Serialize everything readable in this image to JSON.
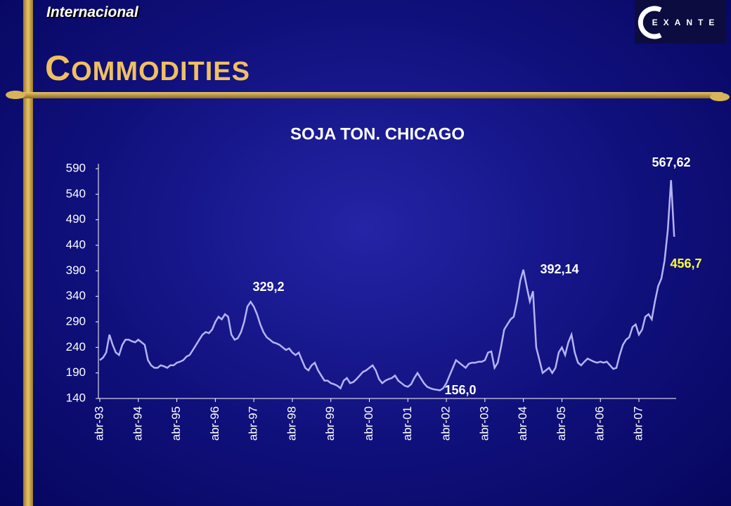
{
  "header": {
    "section": "Internacional",
    "title": "COMMODITIES",
    "logo": "EXANTE"
  },
  "chart_data": {
    "type": "line",
    "title": "SOJA TON. CHICAGO",
    "categories": [
      "abr-93",
      null,
      null,
      null,
      null,
      null,
      null,
      null,
      null,
      null,
      null,
      null,
      "abr-94",
      null,
      null,
      null,
      null,
      null,
      null,
      null,
      null,
      null,
      null,
      null,
      "abr-95",
      null,
      null,
      null,
      null,
      null,
      null,
      null,
      null,
      null,
      null,
      null,
      "abr-96",
      null,
      null,
      null,
      null,
      null,
      null,
      null,
      null,
      null,
      null,
      null,
      "abr-97",
      null,
      null,
      null,
      null,
      null,
      null,
      null,
      null,
      null,
      null,
      null,
      "abr-98",
      null,
      null,
      null,
      null,
      null,
      null,
      null,
      null,
      null,
      null,
      null,
      "abr-99",
      null,
      null,
      null,
      null,
      null,
      null,
      null,
      null,
      null,
      null,
      null,
      "abr-00",
      null,
      null,
      null,
      null,
      null,
      null,
      null,
      null,
      null,
      null,
      null,
      "abr-01",
      null,
      null,
      null,
      null,
      null,
      null,
      null,
      null,
      null,
      null,
      null,
      "abr-02",
      null,
      null,
      null,
      null,
      null,
      null,
      null,
      null,
      null,
      null,
      null,
      "abr-03",
      null,
      null,
      null,
      null,
      null,
      null,
      null,
      null,
      null,
      null,
      null,
      "abr-04",
      null,
      null,
      null,
      null,
      null,
      null,
      null,
      null,
      null,
      null,
      null,
      "abr-05",
      null,
      null,
      null,
      null,
      null,
      null,
      null,
      null,
      null,
      null,
      null,
      "abr-06",
      null,
      null,
      null,
      null,
      null,
      null,
      null,
      null,
      null,
      null,
      null,
      "abr-07",
      null,
      null,
      null,
      null,
      null,
      null,
      null,
      null,
      null,
      null,
      null
    ],
    "series": [
      {
        "color": "#b4b4f4",
        "values": [
          215,
          220,
          230,
          265,
          245,
          230,
          225,
          245,
          255,
          255,
          252,
          250,
          255,
          250,
          245,
          215,
          205,
          200,
          200,
          205,
          203,
          200,
          205,
          205,
          210,
          212,
          215,
          222,
          225,
          235,
          245,
          255,
          265,
          270,
          268,
          275,
          290,
          300,
          295,
          305,
          300,
          265,
          255,
          258,
          270,
          290,
          320,
          329.2,
          320,
          305,
          285,
          270,
          260,
          255,
          250,
          248,
          245,
          240,
          235,
          238,
          230,
          225,
          230,
          215,
          200,
          195,
          205,
          210,
          195,
          185,
          175,
          175,
          170,
          168,
          165,
          160,
          175,
          180,
          170,
          172,
          178,
          185,
          192,
          195,
          200,
          205,
          195,
          178,
          170,
          175,
          178,
          180,
          185,
          175,
          170,
          165,
          163,
          168,
          180,
          190,
          180,
          170,
          163,
          160,
          158,
          157,
          156.0,
          160,
          170,
          185,
          200,
          215,
          210,
          205,
          200,
          208,
          210,
          210,
          212,
          212,
          215,
          230,
          232,
          200,
          210,
          240,
          275,
          285,
          295,
          300,
          330,
          370,
          392.14,
          360,
          330,
          350,
          240,
          215,
          190,
          195,
          200,
          190,
          200,
          230,
          240,
          225,
          250,
          265,
          230,
          210,
          205,
          212,
          218,
          215,
          212,
          210,
          212,
          210,
          212,
          205,
          198,
          200,
          225,
          245,
          255,
          260,
          280,
          285,
          265,
          275,
          300,
          305,
          295,
          330,
          360,
          375,
          410,
          470,
          567.62,
          456.7
        ]
      }
    ],
    "ylim": [
      140,
      590
    ],
    "yticks": [
      140,
      190,
      240,
      290,
      340,
      390,
      440,
      490,
      540,
      590
    ],
    "annotations": [
      {
        "value": 567.62,
        "label": "567,62",
        "color": "#ffffff"
      },
      {
        "value": 456.7,
        "label": "456,7",
        "color": "#ffff33"
      },
      {
        "value": 392.14,
        "label": "392,14",
        "color": "#ffffff"
      },
      {
        "value": 329.2,
        "label": "329,2",
        "color": "#ffffff"
      },
      {
        "value": 156.0,
        "label": "156,0",
        "color": "#ffffff"
      }
    ]
  }
}
